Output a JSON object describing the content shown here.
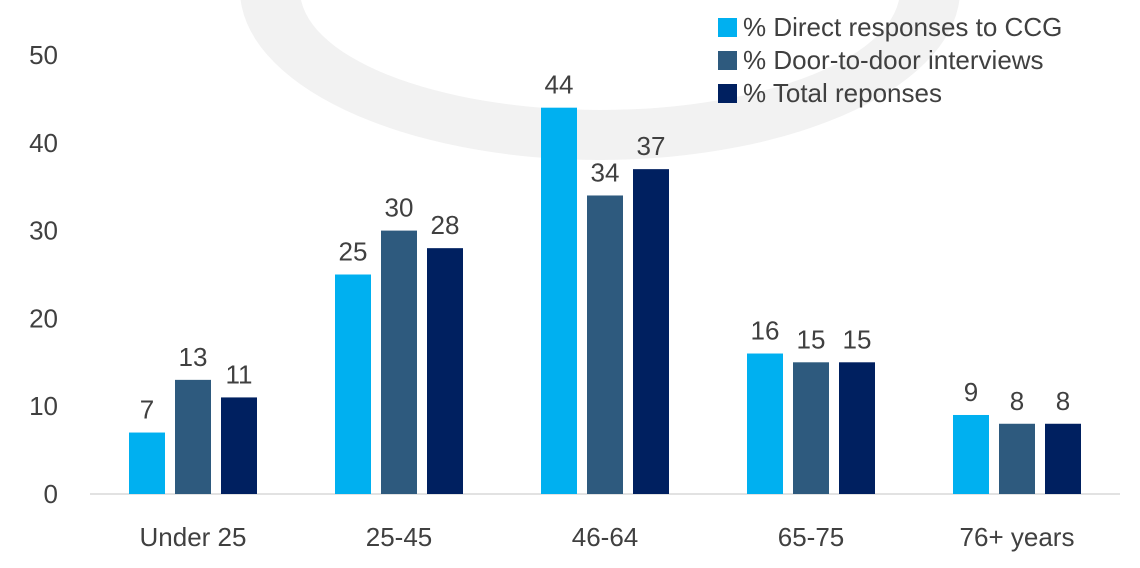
{
  "chart_data": {
    "type": "bar",
    "categories": [
      "Under 25",
      "25-45",
      "46-64",
      "65-75",
      "76+ years"
    ],
    "series": [
      {
        "name": "% Direct responses to CCG",
        "color": "#00B0F0",
        "values": [
          7,
          25,
          44,
          16,
          9
        ]
      },
      {
        "name": "% Door-to-door interviews",
        "color": "#2E5A7E",
        "values": [
          13,
          30,
          34,
          15,
          8
        ]
      },
      {
        "name": "% Total reponses",
        "color": "#002060",
        "values": [
          11,
          28,
          37,
          15,
          8
        ]
      }
    ],
    "yticks": [
      0,
      10,
      20,
      30,
      40,
      50
    ],
    "ylim": [
      0,
      50
    ],
    "grid": false,
    "data_labels": true,
    "legend_position": "top-right",
    "title": "",
    "xlabel": "",
    "ylabel": ""
  },
  "colors": {
    "axis_text": "#404040",
    "axis_line": "#D9D9D9",
    "background_watermark": "#F2F2F2"
  }
}
